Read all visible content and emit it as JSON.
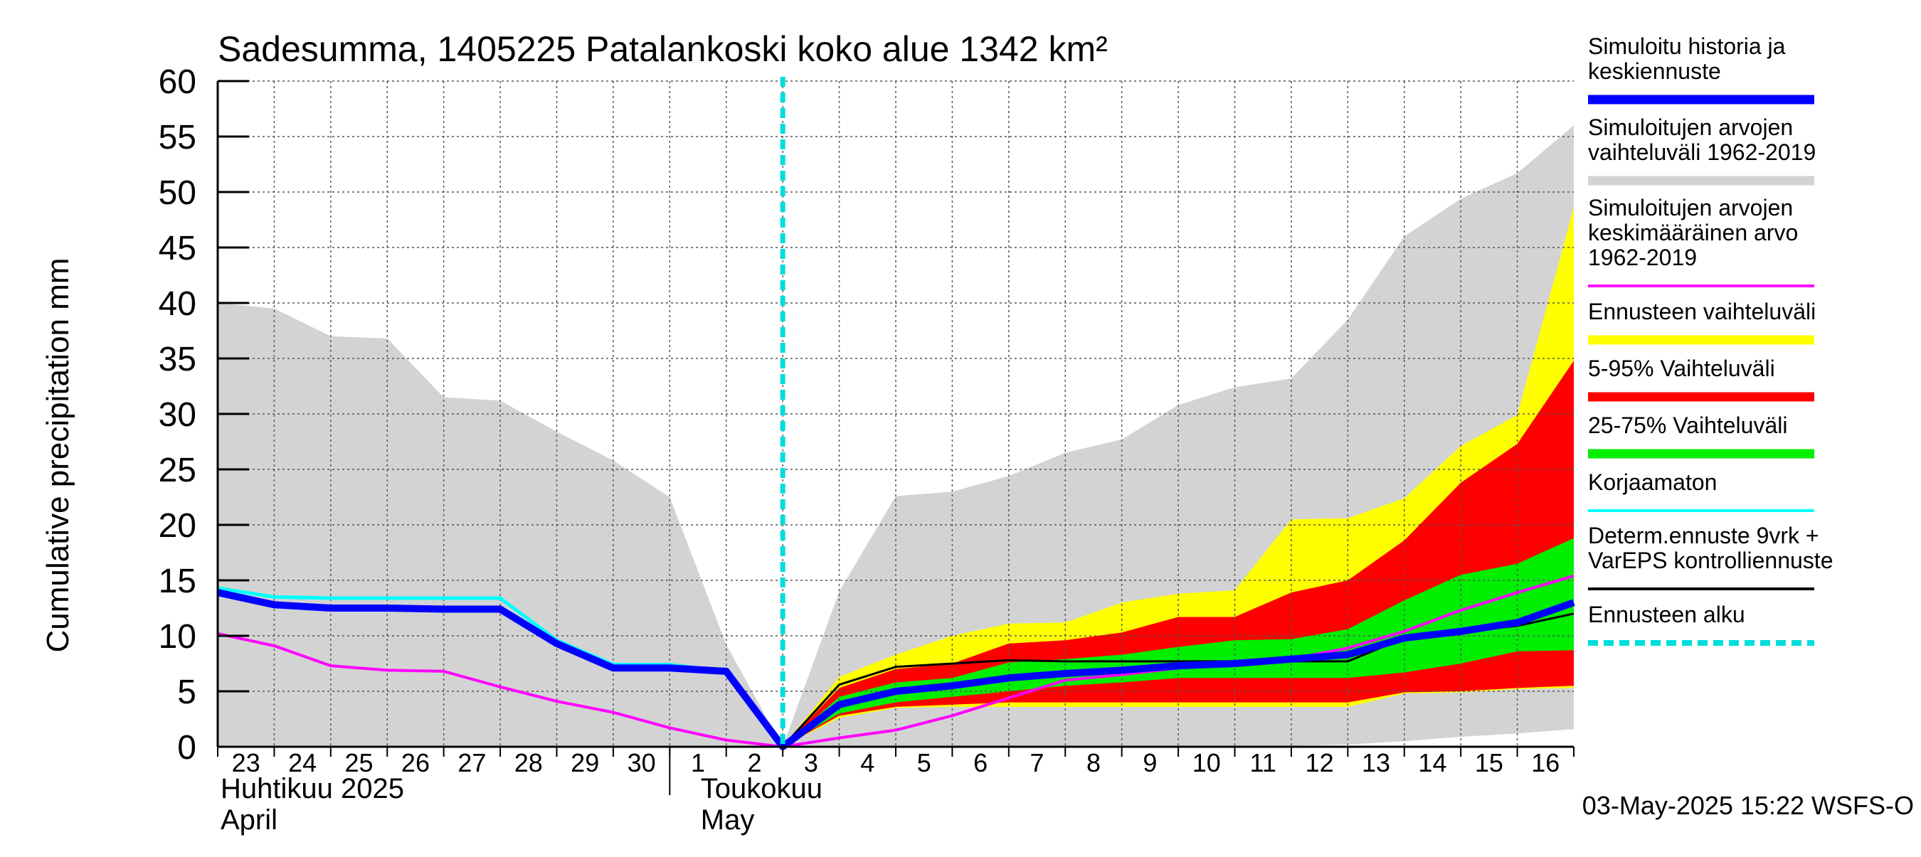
{
  "chart_data": {
    "type": "area",
    "title": "Sadesumma, 1405225 Patalankoski koko alue 1342 km²",
    "ylabel": "Cumulative precipitation   mm",
    "ylim": [
      0,
      60
    ],
    "y_ticks": [
      0,
      5,
      10,
      15,
      20,
      25,
      30,
      35,
      40,
      45,
      50,
      55,
      60
    ],
    "x": [
      "Apr 23",
      "Apr 24",
      "Apr 25",
      "Apr 26",
      "Apr 27",
      "Apr 28",
      "Apr 29",
      "Apr 30",
      "May 1",
      "May 2",
      "May 3",
      "May 4",
      "May 5",
      "May 6",
      "May 7",
      "May 8",
      "May 9",
      "May 10",
      "May 11",
      "May 12",
      "May 13",
      "May 14",
      "May 15",
      "May 16",
      "May 17"
    ],
    "x_tick_labels": [
      "23",
      "24",
      "25",
      "26",
      "27",
      "28",
      "29",
      "30",
      "1",
      "2",
      "3",
      "4",
      "5",
      "6",
      "7",
      "8",
      "9",
      "10",
      "11",
      "12",
      "13",
      "14",
      "15",
      "16"
    ],
    "month_labels": [
      {
        "fi": "Huhtikuu  2025",
        "en": "April"
      },
      {
        "fi": "Toukokuu",
        "en": "May"
      }
    ],
    "forecast_start": "May 3",
    "timestamp": "03-May-2025 15:22 WSFS-O",
    "series": [
      {
        "name": "Simuloitujen arvojen vaihteluväli 1962-2019",
        "color": "#d3d3d3",
        "upper": [
          40,
          39.5,
          37,
          36.8,
          31.5,
          31.2,
          28.4,
          25.8,
          22.5,
          9.2,
          0,
          14,
          22.6,
          23,
          24.4,
          26.5,
          27.7,
          30.8,
          32.4,
          33.2,
          38.5,
          46,
          49.4,
          51.7,
          56
        ],
        "lower": [
          0,
          0,
          0,
          0,
          0,
          0,
          0,
          0,
          0,
          0,
          0,
          0,
          0,
          0,
          0,
          0,
          0,
          0,
          0,
          0.1,
          0.2,
          0.5,
          0.9,
          1.2,
          1.6
        ]
      },
      {
        "name": "Ennusteen vaihteluväli",
        "color": "#ffff00",
        "upper": [
          null,
          null,
          null,
          null,
          null,
          null,
          null,
          null,
          null,
          null,
          0,
          6.3,
          8.3,
          10,
          11.1,
          11.2,
          13,
          13.8,
          14.1,
          20.5,
          20.6,
          22.4,
          27.1,
          29.9,
          48.6
        ],
        "lower": [
          null,
          null,
          null,
          null,
          null,
          null,
          null,
          null,
          null,
          null,
          0,
          2.6,
          3.5,
          3.6,
          3.6,
          3.6,
          3.6,
          3.6,
          3.6,
          3.6,
          3.6,
          4.8,
          4.9,
          5.2,
          5.3
        ]
      },
      {
        "name": "5-95% Vaihteluväli",
        "color": "#ff0000",
        "upper": [
          null,
          null,
          null,
          null,
          null,
          null,
          null,
          null,
          null,
          null,
          0,
          5.3,
          7,
          7.5,
          9.3,
          9.6,
          10.3,
          11.7,
          11.7,
          13.9,
          15,
          18.6,
          23.8,
          27.3,
          34.8
        ],
        "lower": [
          null,
          null,
          null,
          null,
          null,
          null,
          null,
          null,
          null,
          null,
          0,
          2.8,
          3.6,
          3.8,
          4,
          4,
          4,
          4,
          4,
          4,
          4,
          4.9,
          5,
          5.3,
          5.5
        ]
      },
      {
        "name": "25-75% Vaihteluväli",
        "color": "#00ee00",
        "upper": [
          null,
          null,
          null,
          null,
          null,
          null,
          null,
          null,
          null,
          null,
          0,
          4.5,
          5.8,
          6.2,
          7.6,
          7.9,
          8.3,
          9,
          9.6,
          9.7,
          10.6,
          13.2,
          15.5,
          16.5,
          18.8
        ],
        "lower": [
          null,
          null,
          null,
          null,
          null,
          null,
          null,
          null,
          null,
          null,
          0,
          3,
          4,
          4.5,
          5,
          5.5,
          5.8,
          6.2,
          6.2,
          6.2,
          6.2,
          6.7,
          7.5,
          8.6,
          8.7
        ]
      },
      {
        "name": "Simuloitujen arvojen keskimääräinen arvo 1962-2019",
        "color": "#ff00ff",
        "values": [
          10.2,
          9.1,
          7.3,
          6.9,
          6.8,
          5.4,
          4.1,
          3.1,
          1.7,
          0.6,
          0,
          0.8,
          1.5,
          2.8,
          4.4,
          6,
          6.5,
          7.1,
          7.4,
          7.9,
          8.9,
          10.4,
          12.3,
          13.9,
          15.4
        ]
      },
      {
        "name": "Korjaamaton",
        "color": "#00ffff",
        "values": [
          14.3,
          13.5,
          13.4,
          13.4,
          13.4,
          13.4,
          9.6,
          7.4,
          7.4,
          6.8,
          0,
          3.8,
          5,
          5.5,
          6.2,
          6.6,
          6.9,
          7.3,
          7.5,
          7.9,
          8.3,
          9.8,
          10.4,
          11.2,
          13
        ]
      },
      {
        "name": "Determ.ennuste 9vrk + VarEPS kontrolliennuste",
        "color": "#000000",
        "values": [
          null,
          null,
          null,
          null,
          null,
          null,
          null,
          null,
          null,
          null,
          0,
          5.6,
          7.2,
          7.5,
          7.8,
          7.7,
          7.7,
          7.7,
          7.7,
          7.7,
          7.7,
          9.8,
          10.4,
          10.9,
          12
        ]
      },
      {
        "name": "Simuloitu historia ja keskiennuste",
        "color": "#0000ff",
        "values": [
          13.9,
          12.8,
          12.5,
          12.5,
          12.4,
          12.4,
          9.3,
          7.1,
          7.1,
          6.8,
          0,
          3.8,
          5,
          5.5,
          6.2,
          6.6,
          6.9,
          7.3,
          7.5,
          7.9,
          8.3,
          9.8,
          10.4,
          11.2,
          13
        ]
      }
    ]
  },
  "legend": [
    {
      "label": "Simuloitu historia ja keskiennuste",
      "color": "#0000ff",
      "style": "thick"
    },
    {
      "label": "Simuloitujen arvojen vaihteluväli 1962-2019",
      "color": "#d3d3d3",
      "style": "thick"
    },
    {
      "label": "Simuloitujen arvojen keskimääräinen arvo 1962-2019",
      "color": "#ff00ff",
      "style": "thin"
    },
    {
      "label": "Ennusteen vaihteluväli",
      "color": "#ffff00",
      "style": "thick"
    },
    {
      "label": "5-95% Vaihteluväli",
      "color": "#ff0000",
      "style": "thick"
    },
    {
      "label": "25-75% Vaihteluväli",
      "color": "#00ee00",
      "style": "thick"
    },
    {
      "label": "Korjaamaton",
      "color": "#00ffff",
      "style": "thin"
    },
    {
      "label": "Determ.ennuste 9vrk + VarEPS kontrolliennuste",
      "color": "#000000",
      "style": "thin"
    },
    {
      "label": "Ennusteen alku",
      "color": "#00dddd",
      "style": "dashed"
    }
  ],
  "legend_lines": [
    [
      "Simuloitu historia ja",
      "keskiennuste"
    ],
    [
      "Simuloitujen arvojen",
      "vaihteluväli 1962-2019"
    ],
    [
      "Simuloitujen arvojen",
      "keskimääräinen arvo",
      "   1962-2019"
    ],
    [
      "Ennusteen vaihteluväli"
    ],
    [
      "5-95% Vaihteluväli"
    ],
    [
      "25-75% Vaihteluväli"
    ],
    [
      "Korjaamaton"
    ],
    [
      "Determ.ennuste 9vrk +",
      "VarEPS kontrolliennuste"
    ],
    [
      "Ennusteen alku"
    ]
  ]
}
